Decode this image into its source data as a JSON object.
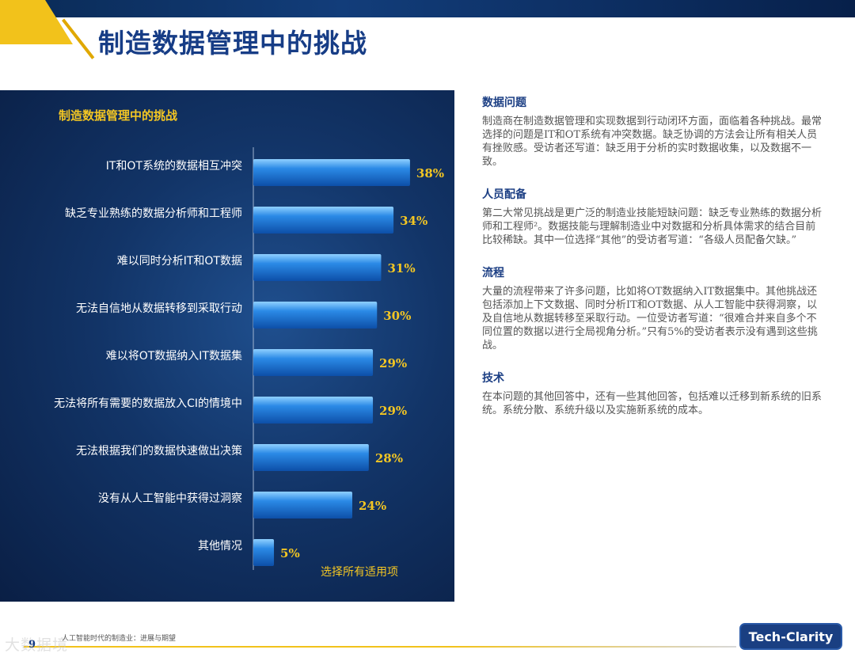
{
  "header": {
    "title": "制造数据管理中的挑战"
  },
  "chart_data": {
    "type": "bar",
    "orientation": "horizontal",
    "title": "制造数据管理中的挑战",
    "note": "选择所有适用项",
    "categories": [
      "IT和OT系统的数据相互冲突",
      "缺乏专业熟练的数据分析师和工程师",
      "难以同时分析IT和OT数据",
      "无法自信地从数据转移到采取行动",
      "难以将OT数据纳入IT数据集",
      "无法将所有需要的数据放入CI的情境中",
      "无法根据我们的数据快速做出决策",
      "没有从人工智能中获得过洞察",
      "其他情况"
    ],
    "values": [
      38,
      34,
      31,
      30,
      29,
      29,
      28,
      24,
      5
    ],
    "labels": [
      "38%",
      "34%",
      "31%",
      "30%",
      "29%",
      "29%",
      "28%",
      "24%",
      "5%"
    ],
    "unit": "%",
    "xlim": [
      0,
      48
    ],
    "grid": false,
    "bar_color": "#2b8ae6",
    "label_color": "#f3c623"
  },
  "sections": [
    {
      "heading": "数据问题",
      "body": "制造商在制造数据管理和实现数据到行动闭环方面，面临着各种挑战。最常选择的问题是IT和OT系统有冲突数据。缺乏协调的方法会让所有相关人员有挫败感。受访者还写道：缺乏用于分析的实时数据收集，以及数据不一致。"
    },
    {
      "heading": "人员配备",
      "body": "第二大常见挑战是更广泛的制造业技能短缺问题：缺乏专业熟练的数据分析师和工程师²。数据技能与理解制造业中对数据和分析具体需求的结合目前比较稀缺。其中一位选择“其他”的受访者写道：“各级人员配备欠缺。”"
    },
    {
      "heading": "流程",
      "body": "大量的流程带来了许多问题，比如将OT数据纳入IT数据集中。其他挑战还包括添加上下文数据、同时分析IT和OT数据、从人工智能中获得洞察，以及自信地从数据转移至采取行动。一位受访者写道：“很难合并来自多个不同位置的数据以进行全局视角分析。”只有5%的受访者表示没有遇到这些挑战。"
    },
    {
      "heading": "技术",
      "body": "在本问题的其他回答中，还有一些其他回答，包括难以迁移到新系统的旧系统。系统分散、系统升级以及实施新系统的成本。"
    }
  ],
  "footer": {
    "page": "9",
    "text": "人工智能时代的制造业：进展与期望",
    "watermark": "大数据境",
    "logo": "Tech-Clarity"
  }
}
